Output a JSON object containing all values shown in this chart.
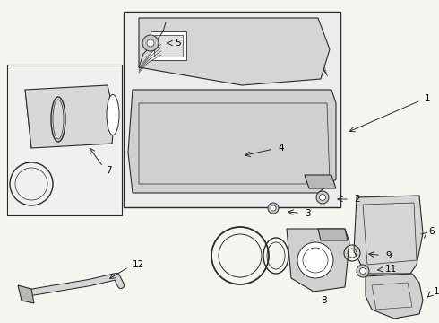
{
  "background_color": "#f5f5f0",
  "line_color": "#2a2a2a",
  "label_color": "#000000",
  "fig_width": 4.9,
  "fig_height": 3.6,
  "dpi": 100
}
